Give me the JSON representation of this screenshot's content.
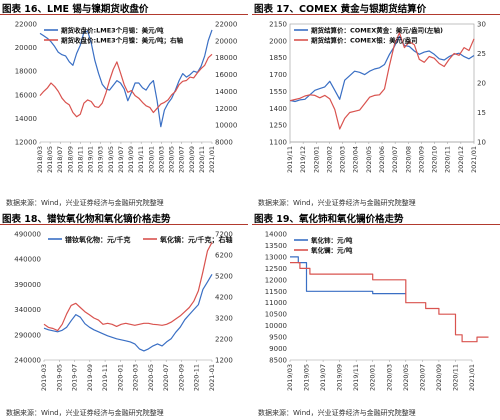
{
  "colors": {
    "blue": "#3a6fc4",
    "red": "#d9534f",
    "rule": "#b23a2e"
  },
  "source_note": "数据来源：Wind，兴业证券经济与金融研究院整理",
  "chart_data": [
    {
      "id": "p1",
      "panel_title": "图表 16、LME 锡与镍期货收盘价",
      "type": "line",
      "legend_pos": "top-left",
      "x_ticks": [
        "2018/03",
        "2018/05",
        "2018/07",
        "2018/09",
        "2018/11",
        "2019/01",
        "2019/03",
        "2019/05",
        "2019/07",
        "2019/09",
        "2019/11",
        "2020/01",
        "2020/03",
        "2020/05",
        "2020/07",
        "2020/09",
        "2020/11",
        "2021/01"
      ],
      "y_left": {
        "range": [
          12000,
          22000
        ],
        "ticks": [
          12000,
          14000,
          16000,
          18000,
          20000,
          22000
        ]
      },
      "y_right": {
        "range": [
          8000,
          22000
        ],
        "ticks": [
          8000,
          10000,
          12000,
          14000,
          16000,
          18000,
          20000,
          22000
        ]
      },
      "series": [
        {
          "name": "期货收盘价:LME3个月锡：美元/吨",
          "color": "#3a6fc4",
          "axis": "left",
          "values": [
            21200,
            21000,
            20800,
            20500,
            20100,
            19600,
            19400,
            19300,
            18800,
            18500,
            19500,
            20200,
            21300,
            21400,
            20400,
            18900,
            17800,
            16900,
            16500,
            16400,
            16800,
            17200,
            17000,
            16500,
            15500,
            16200,
            17000,
            17000,
            16600,
            16400,
            16900,
            17200,
            15500,
            13300,
            14700,
            15300,
            15700,
            16400,
            17200,
            17800,
            17500,
            17700,
            18000,
            17900,
            18400,
            19300,
            20600,
            21500
          ]
        },
        {
          "name": "期货收盘价:LME3个月镍：美元/吨；右轴",
          "color": "#d9534f",
          "axis": "right",
          "values": [
            13500,
            14000,
            14400,
            15000,
            14600,
            14000,
            13200,
            12700,
            12400,
            11500,
            11000,
            11300,
            12600,
            13000,
            12800,
            12200,
            12100,
            12600,
            13800,
            15300,
            16600,
            17500,
            16200,
            14800,
            13900,
            14100,
            13500,
            13200,
            12700,
            12300,
            12100,
            11500,
            12000,
            12500,
            12700,
            13000,
            13600,
            14000,
            14800,
            15200,
            15300,
            15700,
            15600,
            16200,
            16700,
            17100,
            18000,
            18400
          ]
        }
      ]
    },
    {
      "id": "p2",
      "panel_title": "图表 17、COMEX 黄金与银期货结算价",
      "type": "line",
      "legend_pos": "top-left",
      "x_ticks": [
        "2019/11",
        "2019/12",
        "2020/01",
        "2020/02",
        "2020/03",
        "2020/04",
        "2020/05",
        "2020/06",
        "2020/07",
        "2020/08",
        "2020/09",
        "2020/10",
        "2020/11",
        "2020/12",
        "2021/01"
      ],
      "y_left": {
        "range": [
          1100,
          2150
        ],
        "ticks": [
          1100,
          1250,
          1400,
          1550,
          1700,
          1850,
          2000,
          2150
        ]
      },
      "y_right": {
        "range": [
          10,
          30
        ],
        "ticks": [
          10,
          15,
          20,
          25,
          30
        ]
      },
      "series": [
        {
          "name": "期货结算价：COMEX黄金：美元/盎司(左轴)",
          "color": "#3a6fc4",
          "axis": "left",
          "values": [
            1470,
            1460,
            1475,
            1480,
            1520,
            1560,
            1575,
            1590,
            1640,
            1560,
            1480,
            1650,
            1690,
            1730,
            1720,
            1700,
            1730,
            1750,
            1760,
            1790,
            1880,
            1950,
            2040,
            1960,
            1950,
            1910,
            1880,
            1900,
            1910,
            1880,
            1840,
            1830,
            1860,
            1880,
            1890,
            1860,
            1840,
            1870
          ]
        },
        {
          "name": "期货结算价：COMEX银：美元/盎司",
          "color": "#d9534f",
          "axis": "right",
          "values": [
            17.0,
            17.2,
            17.4,
            17.8,
            18.0,
            17.9,
            17.5,
            17.9,
            17.3,
            15.5,
            12.2,
            14.0,
            15.0,
            15.2,
            15.4,
            16.5,
            17.6,
            17.9,
            18.0,
            19.0,
            23.0,
            26.5,
            28.5,
            26.0,
            27.0,
            26.5,
            24.0,
            23.5,
            24.5,
            24.2,
            23.3,
            22.8,
            24.0,
            25.0,
            24.7,
            26.0,
            25.5,
            27.5
          ]
        }
      ]
    },
    {
      "id": "p3",
      "panel_title": "图表 18、镨钕氧化物和氧化镝价格走势",
      "type": "line",
      "legend_pos": "top-right",
      "x_ticks": [
        "2019-03",
        "2019-05",
        "2019-07",
        "2019-09",
        "2019-11",
        "2020-01",
        "2020-03",
        "2020-05",
        "2020-07",
        "2020-09",
        "2020-11",
        "2021-01"
      ],
      "y_left": {
        "range": [
          240000,
          490000
        ],
        "ticks": [
          240000,
          290000,
          340000,
          390000,
          440000,
          490000
        ]
      },
      "y_right": {
        "range": [
          1200,
          7200
        ],
        "ticks": [
          1200,
          2200,
          3200,
          4200,
          5200,
          6200,
          7200
        ]
      },
      "series": [
        {
          "name": "镨钕氧化物：元/千克",
          "color": "#3a6fc4",
          "axis": "left",
          "values": [
            303000,
            300000,
            298000,
            296000,
            299000,
            305000,
            318000,
            330000,
            325000,
            312000,
            305000,
            300000,
            296000,
            292000,
            288000,
            285000,
            282000,
            280000,
            278000,
            276000,
            272000,
            262000,
            258000,
            262000,
            268000,
            272000,
            268000,
            276000,
            282000,
            295000,
            305000,
            320000,
            330000,
            340000,
            350000,
            380000,
            395000,
            410000
          ]
        },
        {
          "name": "氧化镝：元/千克；右轴",
          "color": "#d9534f",
          "axis": "right",
          "values": [
            2900,
            2750,
            2700,
            2600,
            2900,
            3400,
            3800,
            3900,
            3700,
            3500,
            3350,
            3200,
            3100,
            2900,
            2950,
            2900,
            2800,
            2900,
            2950,
            2900,
            2850,
            2900,
            2950,
            2950,
            2900,
            2880,
            2850,
            2900,
            3000,
            3150,
            3300,
            3500,
            3700,
            4000,
            4500,
            5400,
            6400,
            6800
          ]
        }
      ]
    },
    {
      "id": "p4",
      "panel_title": "图表 19、氧化铈和氧化镧价格走势",
      "type": "line",
      "legend_pos": "top-left",
      "x_ticks": [
        "2019/03",
        "2019/05",
        "2019/07",
        "2019/09",
        "2019/11",
        "2020/01",
        "2020/03",
        "2020/05",
        "2020/07",
        "2020/09",
        "2020/11",
        "2021/01"
      ],
      "y_left": {
        "range": [
          8500,
          14000
        ],
        "ticks": [
          8500,
          9000,
          9500,
          10000,
          10500,
          11000,
          11500,
          12000,
          12500,
          13000,
          13500,
          14000
        ]
      },
      "series": [
        {
          "name": "氧化铈：元/吨",
          "color": "#3a6fc4",
          "axis": "left",
          "step": true,
          "x": [
            0,
            0.5,
            0.5,
            1.0,
            1.0,
            5.0,
            5.0,
            7.0
          ],
          "values": [
            13000,
            13000,
            12750,
            12750,
            11500,
            11500,
            11400,
            11400
          ]
        },
        {
          "name": "氧化镧：元/吨",
          "color": "#d9534f",
          "axis": "left",
          "step": true,
          "x": [
            0,
            0.6,
            0.6,
            1.2,
            1.2,
            5.0,
            5.0,
            7.0,
            7.0,
            8.2,
            8.2,
            9.0,
            9.0,
            10.0,
            10.0,
            10.4,
            10.4,
            11.3,
            11.3,
            12.0
          ],
          "values": [
            12750,
            12750,
            12500,
            12500,
            12250,
            12250,
            12000,
            12000,
            11000,
            11000,
            10750,
            10750,
            10500,
            10500,
            9600,
            9600,
            9300,
            9300,
            9500,
            9500
          ]
        }
      ]
    }
  ]
}
